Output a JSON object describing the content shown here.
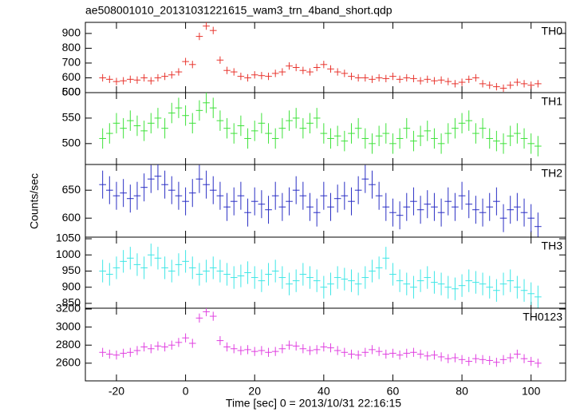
{
  "chart_data": {
    "type": "step",
    "title": "ae508001010_20131031221615_wam3_trn_4band_short.qdp",
    "x_label": "Time [sec] 0 = 2013/10/31 22:16:15",
    "y_label": "Counts/sec",
    "xlim": [
      -29,
      110
    ],
    "xticks": [
      -20,
      0,
      20,
      40,
      60,
      80,
      100
    ],
    "x": [
      -24,
      -22,
      -20,
      -18,
      -16,
      -14,
      -12,
      -10,
      -8,
      -6,
      -4,
      -2,
      0,
      2,
      4,
      6,
      8,
      10,
      12,
      14,
      16,
      18,
      20,
      22,
      24,
      26,
      28,
      30,
      32,
      34,
      36,
      38,
      40,
      42,
      44,
      46,
      48,
      50,
      52,
      54,
      56,
      58,
      60,
      62,
      64,
      66,
      68,
      70,
      72,
      74,
      76,
      78,
      80,
      82,
      84,
      86,
      88,
      90,
      92,
      94,
      96,
      98,
      100,
      102
    ],
    "series": [
      {
        "name": "TH0",
        "color": "#e8352e",
        "error": 25,
        "ylim": [
          500,
          975
        ],
        "yticks": [
          500,
          600,
          700,
          800,
          900
        ],
        "values": [
          600,
          590,
          575,
          580,
          590,
          585,
          600,
          580,
          600,
          610,
          620,
          640,
          710,
          690,
          880,
          950,
          920,
          720,
          650,
          640,
          610,
          600,
          620,
          615,
          610,
          630,
          640,
          680,
          670,
          650,
          640,
          670,
          690,
          660,
          640,
          630,
          610,
          600,
          600,
          590,
          600,
          595,
          610,
          590,
          600,
          595,
          580,
          590,
          580,
          585,
          575,
          560,
          570,
          590,
          600,
          560,
          550,
          540,
          530,
          550,
          570,
          560,
          550,
          560
        ]
      },
      {
        "name": "TH1",
        "color": "#3ee23a",
        "error": 20,
        "ylim": [
          459,
          600
        ],
        "yticks": [
          500,
          550,
          600
        ],
        "values": [
          510,
          520,
          540,
          530,
          545,
          535,
          525,
          540,
          550,
          530,
          560,
          570,
          555,
          540,
          565,
          580,
          570,
          545,
          530,
          520,
          535,
          510,
          525,
          540,
          520,
          510,
          530,
          545,
          550,
          530,
          540,
          550,
          520,
          510,
          515,
          505,
          520,
          530,
          510,
          500,
          515,
          520,
          500,
          510,
          530,
          505,
          515,
          525,
          510,
          500,
          520,
          530,
          540,
          545,
          520,
          530,
          510,
          505,
          500,
          515,
          520,
          510,
          500,
          495
        ]
      },
      {
        "name": "TH2",
        "color": "#2a2fc4",
        "error": 25,
        "ylim": [
          566,
          696
        ],
        "yticks": [
          600,
          650
        ],
        "values": [
          660,
          650,
          640,
          645,
          635,
          640,
          655,
          670,
          675,
          660,
          650,
          640,
          630,
          645,
          670,
          660,
          650,
          640,
          620,
          630,
          640,
          610,
          630,
          625,
          615,
          640,
          620,
          630,
          650,
          640,
          620,
          610,
          640,
          620,
          635,
          640,
          630,
          650,
          670,
          660,
          640,
          620,
          610,
          605,
          620,
          630,
          615,
          625,
          620,
          610,
          630,
          620,
          640,
          625,
          615,
          610,
          620,
          630,
          600,
          615,
          620,
          610,
          600,
          585
        ]
      },
      {
        "name": "TH3",
        "color": "#3ee6e6",
        "error": 35,
        "ylim": [
          835,
          1055
        ],
        "yticks": [
          850,
          900,
          950,
          1000,
          1050
        ],
        "values": [
          950,
          940,
          960,
          980,
          990,
          970,
          960,
          1000,
          990,
          960,
          950,
          970,
          980,
          960,
          940,
          950,
          960,
          950,
          940,
          930,
          935,
          945,
          930,
          920,
          940,
          950,
          930,
          910,
          920,
          940,
          930,
          920,
          900,
          910,
          930,
          925,
          920,
          910,
          930,
          950,
          960,
          990,
          940,
          920,
          910,
          900,
          920,
          930,
          915,
          910,
          900,
          895,
          905,
          920,
          915,
          910,
          900,
          890,
          910,
          920,
          900,
          890,
          880,
          870
        ]
      },
      {
        "name": "TH0123",
        "color": "#e040e0",
        "error": 50,
        "ylim": [
          2404,
          3209
        ],
        "yticks": [
          2600,
          2800,
          3000,
          3200
        ],
        "values": [
          2720,
          2700,
          2690,
          2710,
          2720,
          2740,
          2780,
          2760,
          2790,
          2780,
          2800,
          2830,
          2880,
          2820,
          3100,
          3170,
          3120,
          2850,
          2780,
          2760,
          2740,
          2750,
          2730,
          2740,
          2720,
          2730,
          2760,
          2800,
          2790,
          2760,
          2740,
          2750,
          2780,
          2770,
          2740,
          2720,
          2700,
          2690,
          2720,
          2750,
          2730,
          2700,
          2710,
          2690,
          2710,
          2720,
          2700,
          2680,
          2690,
          2670,
          2650,
          2660,
          2640,
          2620,
          2650,
          2640,
          2630,
          2610,
          2640,
          2660,
          2700,
          2650,
          2620,
          2600
        ]
      }
    ]
  }
}
